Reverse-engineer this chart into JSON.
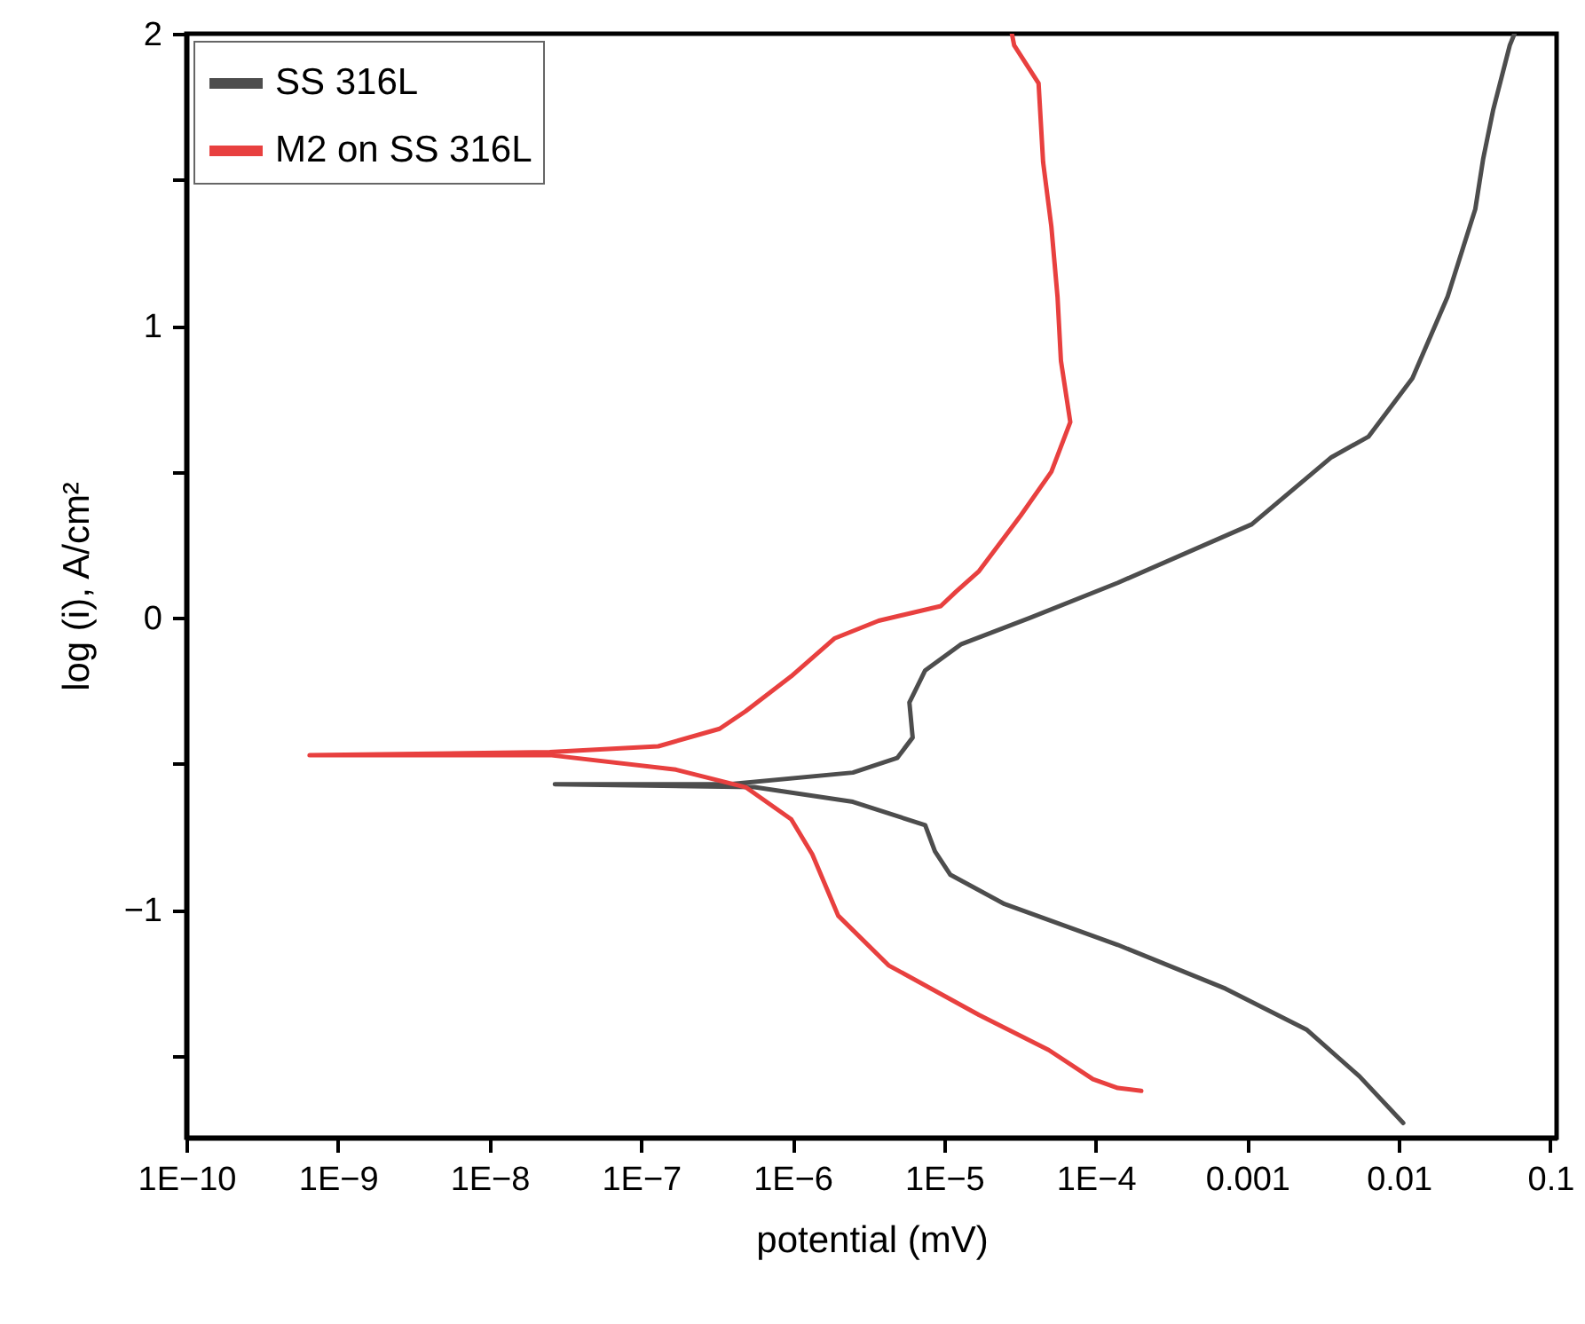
{
  "chart_data": {
    "type": "line",
    "xlabel": "potential (mV)",
    "ylabel": "log (i), A/cm²",
    "log": "x",
    "grid": false,
    "legend": "top left",
    "xlim": [
      1e-10,
      0.11
    ],
    "ylim": [
      -1.78,
      2
    ],
    "xticks": [
      {
        "value": 1e-10,
        "label": "1E−10"
      },
      {
        "value": 1e-09,
        "label": "1E−9"
      },
      {
        "value": 1e-08,
        "label": "1E−8"
      },
      {
        "value": 1e-07,
        "label": "1E−7"
      },
      {
        "value": 1e-06,
        "label": "1E−6"
      },
      {
        "value": 1e-05,
        "label": "1E−5"
      },
      {
        "value": 0.0001,
        "label": "1E−4"
      },
      {
        "value": 0.001,
        "label": "0.001"
      },
      {
        "value": 0.01,
        "label": "0.01"
      },
      {
        "value": 0.1,
        "label": "0.1"
      }
    ],
    "yticks": [
      {
        "value": -1.5,
        "label": null
      },
      {
        "value": -1,
        "label": "−1"
      },
      {
        "value": -0.5,
        "label": null
      },
      0,
      {
        "value": 0.5,
        "label": null
      },
      1,
      {
        "value": 1.5,
        "label": null
      },
      2
    ],
    "series": [
      {
        "name": "SS 316L",
        "color": "#4d4d4d",
        "x": [
          0.0107,
          0.0055,
          0.00246,
          0.00072,
          0.00014,
          2.5e-05,
          1.1e-05,
          8.7e-06,
          7.5e-06,
          2.5e-06,
          5.6e-07,
          2.7e-08,
          3.8e-07,
          2.5e-06,
          4.9e-06,
          6.2e-06,
          5.9e-06,
          7.5e-06,
          1.3e-05,
          3.7e-05,
          0.00014,
          0.00107,
          0.0036,
          0.0063,
          0.0123,
          0.021,
          0.032,
          0.036,
          0.042,
          0.054,
          0.058
        ],
        "values": [
          -1.73,
          -1.57,
          -1.41,
          -1.27,
          -1.12,
          -0.98,
          -0.88,
          -0.8,
          -0.71,
          -0.63,
          -0.58,
          -0.57,
          -0.57,
          -0.53,
          -0.48,
          -0.41,
          -0.29,
          -0.18,
          -0.09,
          0,
          0.12,
          0.32,
          0.55,
          0.62,
          0.82,
          1.1,
          1.4,
          1.57,
          1.74,
          1.96,
          2
        ]
      },
      {
        "name": "M2 on SS 316L",
        "color": "#e8403f",
        "x": [
          0.0002,
          0.00014,
          9.6e-05,
          4.9e-05,
          1.7e-05,
          4.3e-06,
          2e-06,
          1.35e-06,
          9.8e-07,
          4.9e-07,
          1.7e-07,
          2.5e-08,
          6.5e-10,
          2.5e-08,
          1.3e-07,
          3.3e-07,
          4.9e-07,
          9.8e-07,
          1.9e-06,
          3.7e-06,
          9.5e-06,
          1.2e-05,
          1.7e-05,
          3.2e-05,
          5.1e-05,
          6.8e-05,
          5.9e-05,
          5.6e-05,
          5.1e-05,
          4.5e-05,
          4.2e-05,
          2.9e-05,
          2.8e-05
        ],
        "values": [
          -1.62,
          -1.61,
          -1.58,
          -1.48,
          -1.36,
          -1.19,
          -1.02,
          -0.81,
          -0.69,
          -0.58,
          -0.52,
          -0.47,
          -0.47,
          -0.46,
          -0.44,
          -0.38,
          -0.32,
          -0.2,
          -0.07,
          -0.01,
          0.04,
          0.09,
          0.16,
          0.35,
          0.5,
          0.67,
          0.88,
          1.1,
          1.34,
          1.56,
          1.83,
          1.96,
          2
        ]
      }
    ]
  }
}
